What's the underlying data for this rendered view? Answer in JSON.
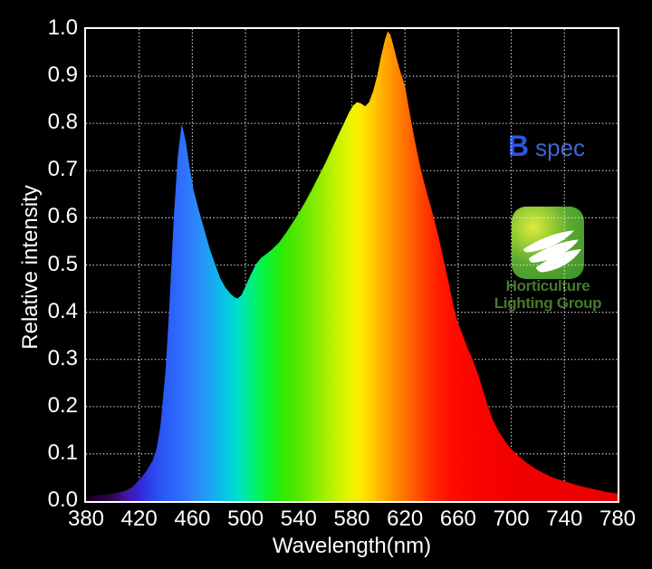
{
  "figure": {
    "background_color": "#000000",
    "text_color": "#ffffff"
  },
  "chart_data": {
    "type": "area",
    "title": "",
    "xlabel": "Wavelength(nm)",
    "ylabel": "Relative intensity",
    "xlim": [
      380,
      780
    ],
    "ylim": [
      0,
      1.0
    ],
    "x_ticks": [
      380,
      420,
      460,
      500,
      540,
      580,
      620,
      660,
      700,
      740,
      780
    ],
    "y_ticks": [
      0.0,
      0.1,
      0.2,
      0.3,
      0.4,
      0.5,
      0.6,
      0.7,
      0.8,
      0.9,
      1.0
    ],
    "grid": "dotted",
    "grid_color": "#e8e8e8",
    "border_color": "#ffffff",
    "legend_position": "none",
    "series": [
      {
        "name": "B spec relative intensity",
        "points": [
          [
            380,
            0.01
          ],
          [
            388,
            0.012
          ],
          [
            396,
            0.014
          ],
          [
            404,
            0.018
          ],
          [
            410,
            0.022
          ],
          [
            415,
            0.03
          ],
          [
            420,
            0.045
          ],
          [
            425,
            0.062
          ],
          [
            430,
            0.085
          ],
          [
            433,
            0.11
          ],
          [
            436,
            0.16
          ],
          [
            440,
            0.28
          ],
          [
            443,
            0.43
          ],
          [
            446,
            0.6
          ],
          [
            449,
            0.73
          ],
          [
            452,
            0.8
          ],
          [
            455,
            0.762
          ],
          [
            458,
            0.705
          ],
          [
            461,
            0.658
          ],
          [
            465,
            0.615
          ],
          [
            469,
            0.575
          ],
          [
            473,
            0.535
          ],
          [
            477,
            0.503
          ],
          [
            481,
            0.472
          ],
          [
            485,
            0.452
          ],
          [
            489,
            0.438
          ],
          [
            492,
            0.431
          ],
          [
            494,
            0.429
          ],
          [
            497,
            0.436
          ],
          [
            500,
            0.455
          ],
          [
            504,
            0.48
          ],
          [
            508,
            0.502
          ],
          [
            512,
            0.516
          ],
          [
            516,
            0.524
          ],
          [
            520,
            0.533
          ],
          [
            525,
            0.547
          ],
          [
            530,
            0.566
          ],
          [
            535,
            0.588
          ],
          [
            540,
            0.61
          ],
          [
            545,
            0.634
          ],
          [
            550,
            0.66
          ],
          [
            555,
            0.688
          ],
          [
            560,
            0.716
          ],
          [
            565,
            0.746
          ],
          [
            570,
            0.776
          ],
          [
            574,
            0.8
          ],
          [
            578,
            0.824
          ],
          [
            581,
            0.838
          ],
          [
            584,
            0.845
          ],
          [
            587,
            0.842
          ],
          [
            590,
            0.836
          ],
          [
            593,
            0.845
          ],
          [
            596,
            0.868
          ],
          [
            599,
            0.9
          ],
          [
            602,
            0.942
          ],
          [
            605,
            0.978
          ],
          [
            607,
            0.995
          ],
          [
            609,
            0.988
          ],
          [
            611,
            0.968
          ],
          [
            614,
            0.935
          ],
          [
            617,
            0.905
          ],
          [
            620,
            0.88
          ],
          [
            622,
            0.848
          ],
          [
            625,
            0.8
          ],
          [
            628,
            0.756
          ],
          [
            631,
            0.715
          ],
          [
            634,
            0.68
          ],
          [
            637,
            0.648
          ],
          [
            640,
            0.618
          ],
          [
            643,
            0.585
          ],
          [
            646,
            0.55
          ],
          [
            650,
            0.5
          ],
          [
            653,
            0.462
          ],
          [
            656,
            0.42
          ],
          [
            659,
            0.385
          ],
          [
            663,
            0.355
          ],
          [
            667,
            0.325
          ],
          [
            671,
            0.3
          ],
          [
            675,
            0.268
          ],
          [
            679,
            0.232
          ],
          [
            682,
            0.205
          ],
          [
            686,
            0.172
          ],
          [
            690,
            0.15
          ],
          [
            695,
            0.128
          ],
          [
            700,
            0.11
          ],
          [
            706,
            0.094
          ],
          [
            712,
            0.08
          ],
          [
            718,
            0.069
          ],
          [
            725,
            0.058
          ],
          [
            732,
            0.049
          ],
          [
            740,
            0.042
          ],
          [
            748,
            0.035
          ],
          [
            756,
            0.029
          ],
          [
            764,
            0.024
          ],
          [
            772,
            0.019
          ],
          [
            780,
            0.016
          ]
        ]
      }
    ],
    "spectrum_gradient": [
      {
        "offset": 0.0,
        "color": "#14001c"
      },
      {
        "offset": 0.05,
        "color": "#2f0650"
      },
      {
        "offset": 0.075,
        "color": "#47139e"
      },
      {
        "offset": 0.1,
        "color": "#3326d8"
      },
      {
        "offset": 0.125,
        "color": "#2c45ee"
      },
      {
        "offset": 0.15,
        "color": "#2b5cf8"
      },
      {
        "offset": 0.18,
        "color": "#2e6efc"
      },
      {
        "offset": 0.21,
        "color": "#2b8af8"
      },
      {
        "offset": 0.24,
        "color": "#16acf0"
      },
      {
        "offset": 0.27,
        "color": "#00cfe2"
      },
      {
        "offset": 0.29,
        "color": "#00e4bd"
      },
      {
        "offset": 0.31,
        "color": "#00ee84"
      },
      {
        "offset": 0.34,
        "color": "#0cf336"
      },
      {
        "offset": 0.37,
        "color": "#2fea02"
      },
      {
        "offset": 0.4,
        "color": "#57e600"
      },
      {
        "offset": 0.44,
        "color": "#92ee00"
      },
      {
        "offset": 0.47,
        "color": "#c2f300"
      },
      {
        "offset": 0.5,
        "color": "#ecf400"
      },
      {
        "offset": 0.52,
        "color": "#ffe500"
      },
      {
        "offset": 0.545,
        "color": "#ffc200"
      },
      {
        "offset": 0.565,
        "color": "#ffa300"
      },
      {
        "offset": 0.58,
        "color": "#ff8e00"
      },
      {
        "offset": 0.6,
        "color": "#ff7100"
      },
      {
        "offset": 0.625,
        "color": "#ff4e00"
      },
      {
        "offset": 0.65,
        "color": "#ff2b00"
      },
      {
        "offset": 0.68,
        "color": "#ff1000"
      },
      {
        "offset": 0.72,
        "color": "#fb0500"
      },
      {
        "offset": 0.8,
        "color": "#f20000"
      },
      {
        "offset": 1.0,
        "color": "#e70000"
      }
    ]
  },
  "annotations": {
    "spec_label": {
      "bold": "B",
      "rest": "spec",
      "bold_color": "#2b55e0",
      "rest_color": "#3e68cf"
    },
    "logo": {
      "line1": "Horticulture",
      "line2": "Lighting Group",
      "text_color": "#457a2a",
      "tile_green": "#3c8f2a",
      "tile_glow": "#dcea3e",
      "leaf_color": "#ffffff"
    }
  }
}
